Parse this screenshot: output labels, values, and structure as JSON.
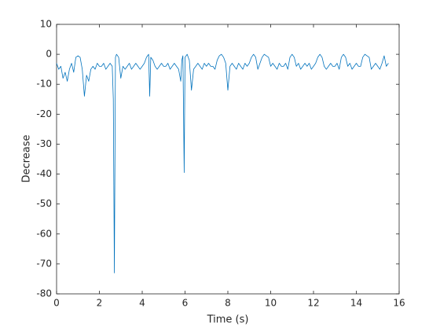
{
  "chart_data": {
    "type": "line",
    "xlabel": "Time (s)",
    "ylabel": "Decrease",
    "xlim": [
      0,
      16
    ],
    "xticks": [
      0,
      2,
      4,
      6,
      8,
      10,
      12,
      14,
      16
    ],
    "ylim": [
      -80,
      10
    ],
    "yticks": [
      -80,
      -70,
      -60,
      -50,
      -40,
      -30,
      -20,
      -10,
      0,
      10
    ],
    "grid": false,
    "series": [
      {
        "color": "#0072bd",
        "x": [
          0,
          0.1,
          0.2,
          0.3,
          0.4,
          0.5,
          0.6,
          0.7,
          0.8,
          0.9,
          1.0,
          1.1,
          1.2,
          1.3,
          1.4,
          1.5,
          1.6,
          1.7,
          1.8,
          1.9,
          2.0,
          2.1,
          2.2,
          2.3,
          2.4,
          2.5,
          2.6,
          2.65,
          2.7,
          2.75,
          2.8,
          2.9,
          3.0,
          3.1,
          3.2,
          3.3,
          3.4,
          3.5,
          3.6,
          3.7,
          3.8,
          3.9,
          4.0,
          4.1,
          4.2,
          4.3,
          4.35,
          4.4,
          4.5,
          4.6,
          4.7,
          4.8,
          4.9,
          5.0,
          5.1,
          5.2,
          5.3,
          5.4,
          5.5,
          5.6,
          5.7,
          5.8,
          5.85,
          5.9,
          5.93,
          5.96,
          6.0,
          6.1,
          6.2,
          6.3,
          6.4,
          6.5,
          6.6,
          6.7,
          6.8,
          6.9,
          7.0,
          7.1,
          7.2,
          7.3,
          7.4,
          7.5,
          7.6,
          7.7,
          7.8,
          7.9,
          8.0,
          8.1,
          8.2,
          8.3,
          8.4,
          8.5,
          8.6,
          8.7,
          8.8,
          8.9,
          9.0,
          9.1,
          9.2,
          9.3,
          9.4,
          9.5,
          9.6,
          9.7,
          9.8,
          9.9,
          10.0,
          10.1,
          10.2,
          10.3,
          10.4,
          10.5,
          10.6,
          10.7,
          10.8,
          10.9,
          11.0,
          11.1,
          11.2,
          11.3,
          11.4,
          11.5,
          11.6,
          11.7,
          11.8,
          11.9,
          12.0,
          12.1,
          12.2,
          12.3,
          12.4,
          12.5,
          12.6,
          12.7,
          12.8,
          12.9,
          13.0,
          13.1,
          13.2,
          13.3,
          13.4,
          13.5,
          13.6,
          13.7,
          13.8,
          13.9,
          14.0,
          14.1,
          14.2,
          14.3,
          14.4,
          14.5,
          14.6,
          14.7,
          14.8,
          14.9,
          15.0,
          15.1,
          15.2,
          15.3,
          15.4,
          15.5
        ],
        "values": [
          -3,
          -5,
          -4,
          -8,
          -6,
          -9,
          -5,
          -3,
          -6,
          -1,
          -0.5,
          -1,
          -5,
          -14,
          -7,
          -9,
          -5,
          -4,
          -5,
          -3,
          -4,
          -4,
          -3,
          -5,
          -4,
          -3,
          -4,
          -15,
          -73,
          -1,
          0,
          -1,
          -8,
          -4,
          -5,
          -4,
          -3,
          -5,
          -4,
          -3,
          -4,
          -5,
          -4,
          -3,
          -1,
          0,
          -14,
          -1,
          -2,
          -4,
          -5,
          -4,
          -3,
          -4,
          -4,
          -3,
          -5,
          -4,
          -3,
          -4,
          -5,
          -9,
          -2,
          -0.5,
          -19,
          -39.5,
          -1,
          0,
          -2,
          -12,
          -5,
          -4,
          -3,
          -4,
          -5,
          -3,
          -4,
          -3,
          -4,
          -4,
          -5,
          -2,
          -0.5,
          0,
          -1,
          -3,
          -12,
          -4,
          -3,
          -4,
          -5,
          -3,
          -4,
          -5,
          -3,
          -4,
          -3,
          -1,
          0,
          -1,
          -5,
          -3,
          -1,
          0,
          -0.5,
          -1,
          -4,
          -3,
          -4,
          -5,
          -3,
          -4,
          -4,
          -3,
          -5,
          -1,
          0,
          -1,
          -4,
          -3,
          -5,
          -4,
          -3,
          -4,
          -3,
          -5,
          -4,
          -3,
          -1,
          0,
          -1,
          -4,
          -5,
          -4,
          -3,
          -4,
          -4,
          -3,
          -5,
          -1,
          0,
          -1,
          -4,
          -3,
          -5,
          -4,
          -3,
          -4,
          -4,
          -1,
          0,
          -0.5,
          -1,
          -5,
          -4,
          -3,
          -4,
          -5,
          -3,
          -0.5,
          -4,
          -3
        ]
      }
    ]
  }
}
